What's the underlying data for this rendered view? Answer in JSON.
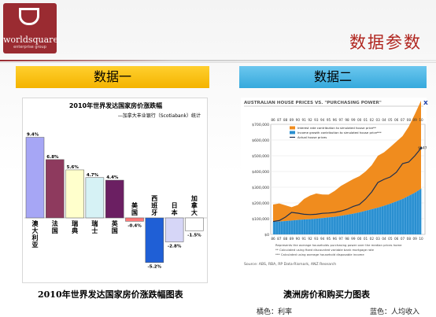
{
  "logo": {
    "brand": "worldsquare",
    "tagline": "enterprise group"
  },
  "page_title": "数据参数",
  "section1": {
    "header": "数据一",
    "caption": "2010年世界发达国家房价涨跌幅图表"
  },
  "section2": {
    "header": "数据二",
    "caption": "澳洲房价和购买力图表",
    "close_label": "x"
  },
  "footer": {
    "orange_legend": "橘色：利率",
    "blue_legend": "蓝色：人均收入"
  },
  "chart_data": [
    {
      "type": "bar",
      "title": "2010年世界发达国家房价涨跌幅",
      "subtitle": "—加拿大丰业银行（Scotiabank）统计",
      "categories": [
        "澳大利亚",
        "法国",
        "瑞典",
        "瑞士",
        "英国",
        "美国",
        "西班牙",
        "日本",
        "加拿大"
      ],
      "values": [
        9.4,
        6.8,
        5.6,
        4.7,
        4.4,
        -0.4,
        -5.2,
        -2.8,
        -1.5
      ],
      "value_labels": [
        "9.4%",
        "6.8%",
        "5.6%",
        "4.7%",
        "4.4%",
        "-0.4%",
        "-5.2%",
        "-2.8%",
        "-1.5%"
      ],
      "colors": [
        "#a6a6f5",
        "#8e3a5e",
        "#ffffcc",
        "#d6f2f5",
        "#6b1f62",
        "#ff7a7a",
        "#1f5fd6",
        "#d6d6f7",
        "#ffffff"
      ],
      "ylim": [
        -6,
        10
      ]
    },
    {
      "type": "area",
      "title": "AUSTRALIAN HOUSE PRICES VS. \"PURCHASING POWER\"",
      "x": [
        "86",
        "87",
        "88",
        "89",
        "90",
        "91",
        "92",
        "93",
        "94",
        "95",
        "96",
        "97",
        "98",
        "99",
        "00",
        "01",
        "02",
        "03",
        "04",
        "05",
        "06",
        "07",
        "08",
        "09",
        "10"
      ],
      "y_ticks": [
        "$0",
        "$100,000",
        "$200,000",
        "$300,000",
        "$400,000",
        "$500,000",
        "$600,000",
        "$700,000"
      ],
      "ylim": [
        0,
        700000
      ],
      "series": [
        {
          "name": "Interest rate contribution to simulated house price**",
          "color": "#f08c1e",
          "values": [
            110000,
            115000,
            100000,
            85000,
            95000,
            130000,
            150000,
            160000,
            150000,
            145000,
            165000,
            190000,
            205000,
            220000,
            230000,
            250000,
            280000,
            330000,
            340000,
            360000,
            380000,
            400000,
            440000,
            500000,
            560000
          ]
        },
        {
          "name": "Income growth contribution to simulated house price***",
          "color": "#2a8fd0",
          "values": [
            80000,
            82000,
            85000,
            88000,
            92000,
            95000,
            97000,
            100000,
            104000,
            108000,
            112000,
            118000,
            125000,
            132000,
            140000,
            150000,
            160000,
            170000,
            182000,
            195000,
            210000,
            225000,
            245000,
            265000,
            290000
          ]
        },
        {
          "name": "Actual house prices",
          "color": "#1f3050",
          "values": [
            82000,
            88000,
            110000,
            140000,
            135000,
            128000,
            126000,
            128000,
            134000,
            136000,
            140000,
            148000,
            160000,
            178000,
            190000,
            225000,
            270000,
            330000,
            350000,
            365000,
            395000,
            450000,
            460000,
            500000,
            547861
          ]
        }
      ],
      "annotation": "$547,861",
      "footnotes": [
        "Represents the average households purchasing power over the median prices home",
        "** Calculated using fixed discounted variable bank mortgage rate",
        "*** Calculated using average household disposable income"
      ],
      "source": "Source: ABS, RBA, RP Data-Rismark, ANZ Research"
    }
  ]
}
